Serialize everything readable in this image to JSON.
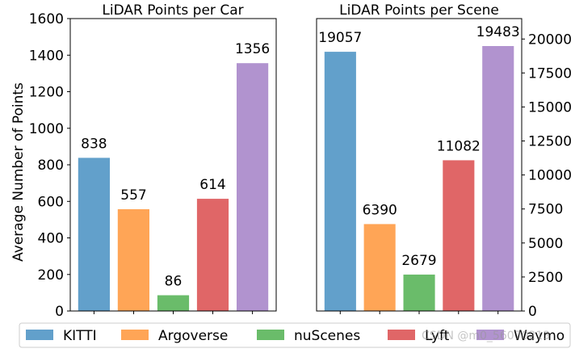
{
  "watermark": "CSDN @m0_56070213",
  "chart_data": [
    {
      "type": "bar",
      "title": "LiDAR Points per Car",
      "ylabel": "Average Number of Points",
      "xlabel": "",
      "categories": [
        "KITTI",
        "Argoverse",
        "nuScenes",
        "Lyft",
        "Waymo"
      ],
      "values": [
        838,
        557,
        86,
        614,
        1356
      ],
      "ylim": [
        0,
        1600
      ],
      "yticks": [
        0,
        200,
        400,
        600,
        800,
        1000,
        1200,
        1400,
        1600
      ],
      "ytick_labels": [
        "0",
        "200",
        "400",
        "600",
        "800",
        "1000",
        "1200",
        "1400",
        "1600"
      ],
      "y_axis_side": "left",
      "grid": false
    },
    {
      "type": "bar",
      "title": "LiDAR Points per Scene",
      "ylabel": "",
      "xlabel": "",
      "categories": [
        "KITTI",
        "Argoverse",
        "nuScenes",
        "Lyft",
        "Waymo"
      ],
      "values": [
        19057,
        6390,
        2679,
        11082,
        19483
      ],
      "ylim": [
        0,
        21500
      ],
      "yticks": [
        0,
        2500,
        5000,
        7500,
        10000,
        12500,
        15000,
        17500,
        20000
      ],
      "ytick_labels": [
        "0",
        "2500",
        "5000",
        "7500",
        "10000",
        "12500",
        "15000",
        "17500",
        "20000"
      ],
      "y_axis_side": "right",
      "grid": false
    }
  ],
  "legend": {
    "placement": "bottom",
    "entries": [
      {
        "label": "KITTI",
        "color": "#62a0cb"
      },
      {
        "label": "Argoverse",
        "color": "#ffa556"
      },
      {
        "label": "nuScenes",
        "color": "#6abc6a"
      },
      {
        "label": "Lyft",
        "color": "#e06667"
      },
      {
        "label": "Waymo",
        "color": "#b193cf"
      }
    ]
  }
}
